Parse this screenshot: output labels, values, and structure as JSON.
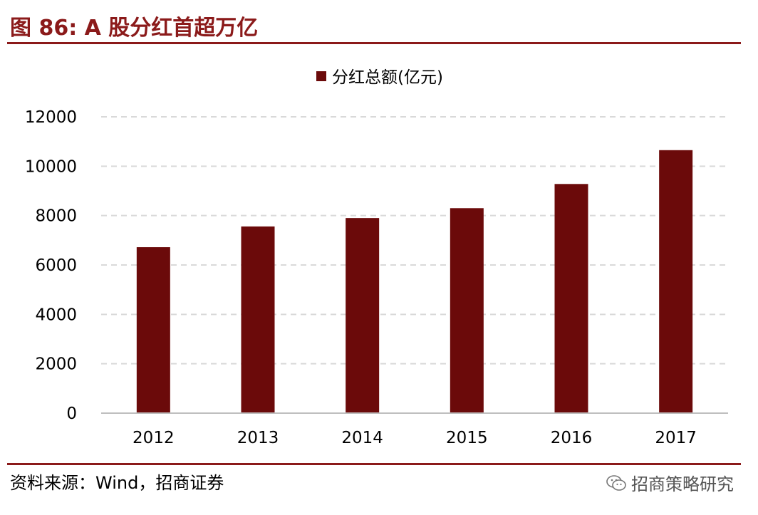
{
  "figure": {
    "title": "图 86:  A 股分红首超万亿",
    "source": "资料来源：Wind，招商证券",
    "watermark": "招商策略研究",
    "watermark_icon": "wechat-icon"
  },
  "colors": {
    "accent": "#8b1a1a",
    "bar": "#6b0a0a",
    "grid": "#d9d9d9",
    "axis": "#bfbfbf"
  },
  "chart_data": {
    "type": "bar",
    "categories": [
      "2012",
      "2013",
      "2014",
      "2015",
      "2016",
      "2017"
    ],
    "series": [
      {
        "name": "分红总额(亿元)",
        "values": [
          6720,
          7560,
          7900,
          8300,
          9280,
          10650
        ]
      }
    ],
    "title": "",
    "xlabel": "",
    "ylabel": "",
    "ylim": [
      0,
      12000
    ],
    "yticks": [
      0,
      2000,
      4000,
      6000,
      8000,
      10000,
      12000
    ],
    "grid": true,
    "legend": "top-center"
  }
}
